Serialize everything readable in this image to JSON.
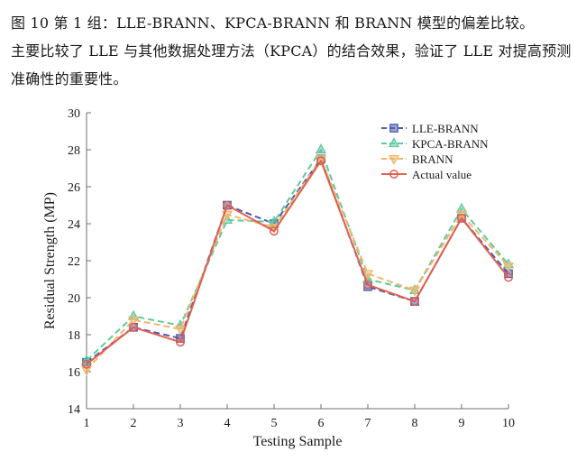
{
  "text": {
    "caption": "图 10  第 1 组：LLE-BRANN、KPCA-BRANN 和 BRANN 模型的偏差比较。",
    "description": "主要比较了 LLE 与其他数据处理方法（KPCA）的结合效果，验证了 LLE 对提高预测准确性的重要性。"
  },
  "chart_data": {
    "type": "line",
    "title": "",
    "xlabel": "Testing Sample",
    "ylabel": "Residual Strength (MP)",
    "x": [
      1,
      2,
      3,
      4,
      5,
      6,
      7,
      8,
      9,
      10
    ],
    "xlim": [
      1,
      10
    ],
    "ylim": [
      14,
      30
    ],
    "xticks": [
      "1",
      "2",
      "3",
      "4",
      "5",
      "6",
      "7",
      "8",
      "9",
      "10"
    ],
    "yticks": [
      "14",
      "16",
      "18",
      "20",
      "22",
      "24",
      "26",
      "28",
      "30"
    ],
    "grid": false,
    "legend": "top-right",
    "series": [
      {
        "name": "LLE-BRANN",
        "color": "#4a5bb0",
        "marker": "square",
        "dash": "dashed",
        "values": [
          16.5,
          18.4,
          17.8,
          25.0,
          24.0,
          27.5,
          20.6,
          19.8,
          24.3,
          21.3
        ]
      },
      {
        "name": "KPCA-BRANN",
        "color": "#5fc9a0",
        "marker": "triangle",
        "dash": "dashed",
        "values": [
          16.6,
          19.0,
          18.5,
          24.2,
          24.1,
          28.0,
          21.0,
          20.4,
          24.8,
          21.8
        ]
      },
      {
        "name": "BRANN",
        "color": "#f2b66a",
        "marker": "triangle-down",
        "dash": "dashed",
        "values": [
          16.1,
          18.8,
          18.3,
          24.5,
          23.8,
          27.5,
          21.3,
          20.4,
          24.5,
          21.7
        ]
      },
      {
        "name": "Actual value",
        "color": "#e0604f",
        "marker": "circle",
        "dash": "solid",
        "values": [
          16.4,
          18.4,
          17.6,
          25.0,
          23.6,
          27.4,
          20.7,
          19.8,
          24.3,
          21.1
        ]
      }
    ]
  }
}
